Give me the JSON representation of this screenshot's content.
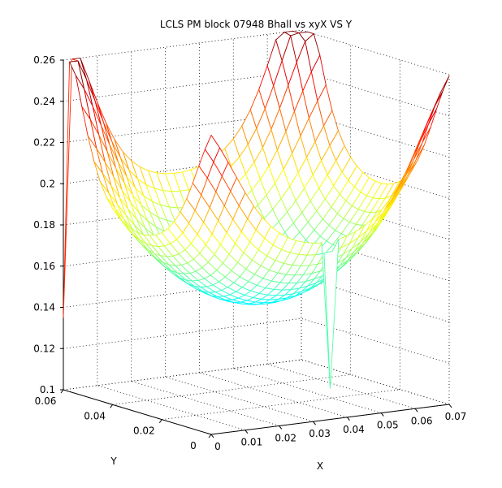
{
  "chart_data": {
    "type": "surface-mesh",
    "title": "LCLS PM block 07948 Bhall vs xyX VS Y",
    "xlabel": "X",
    "ylabel": "Y",
    "zlabel": "",
    "xlim": [
      0,
      0.07
    ],
    "ylim": [
      0,
      0.06
    ],
    "zlim": [
      0.1,
      0.26
    ],
    "xticks": [
      "0",
      "0.01",
      "0.02",
      "0.03",
      "0.04",
      "0.05",
      "0.06",
      "0.07"
    ],
    "yticks": [
      "0",
      "0.02",
      "0.04",
      "0.06"
    ],
    "zticks": [
      "0.1",
      "0.12",
      "0.14",
      "0.16",
      "0.18",
      "0.2",
      "0.22",
      "0.24",
      "0.26"
    ],
    "grid": true,
    "colormap": "jet",
    "surface_description": {
      "min_z": 0.147,
      "min_location": [
        0.033,
        0.028
      ],
      "corner_peaks": [
        {
          "x": 0.0,
          "y": 0.06,
          "z": 0.256
        },
        {
          "x": 0.07,
          "y": 0.06,
          "z": 0.256
        },
        {
          "x": 0.0,
          "y": 0.0,
          "z": 0.236
        },
        {
          "x": 0.07,
          "y": 0.0,
          "z": 0.24
        }
      ],
      "spikes": [
        {
          "x": 0.035,
          "y": 0.0,
          "z": 0.115
        },
        {
          "x": 0.0,
          "y": 0.06,
          "z": 0.135
        },
        {
          "x": 0.07,
          "y": 0.06,
          "z": 0.197
        }
      ]
    }
  }
}
